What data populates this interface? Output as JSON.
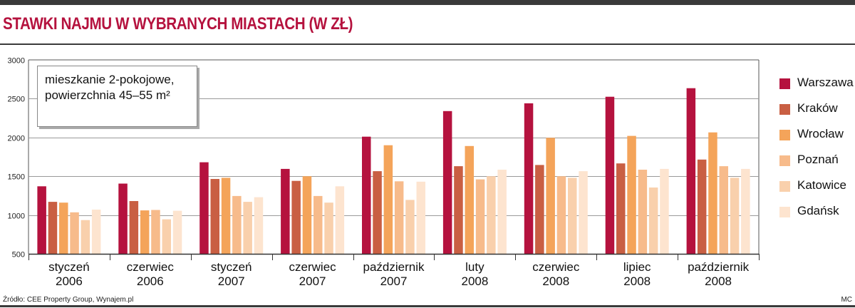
{
  "title": "STAWKI NAJMU W WYBRANYCH MIASTACH (W ZŁ)",
  "note": {
    "line1": "mieszkanie 2-pokojowe,",
    "line2": "powierzchnia 45–55 m²"
  },
  "source": "Źródło: CEE Property Group, Wynajem.pl",
  "credit": "MC",
  "chart_data": {
    "type": "bar",
    "title": "STAWKI NAJMU W WYBRANYCH MIASTACH (W ZŁ)",
    "categories": [
      [
        "styczeń",
        "2006"
      ],
      [
        "czerwiec",
        "2006"
      ],
      [
        "styczeń",
        "2007"
      ],
      [
        "czerwiec",
        "2007"
      ],
      [
        "październik",
        "2007"
      ],
      [
        "luty",
        "2008"
      ],
      [
        "czerwiec",
        "2008"
      ],
      [
        "lipiec",
        "2008"
      ],
      [
        "październik",
        "2008"
      ]
    ],
    "series": [
      {
        "name": "Warszawa",
        "color": "#b5123e",
        "values": [
          1370,
          1405,
          1680,
          1595,
          2010,
          2340,
          2440,
          2525,
          2635
        ]
      },
      {
        "name": "Kraków",
        "color": "#c95f43",
        "values": [
          1170,
          1180,
          1465,
          1440,
          1565,
          1630,
          1645,
          1665,
          1715
        ]
      },
      {
        "name": "Wrocław",
        "color": "#f4a45a",
        "values": [
          1160,
          1060,
          1480,
          1500,
          1900,
          1890,
          1995,
          2020,
          2065
        ]
      },
      {
        "name": "Poznań",
        "color": "#f7bb8b",
        "values": [
          1035,
          1065,
          1245,
          1245,
          1435,
          1460,
          1500,
          1585,
          1630
        ]
      },
      {
        "name": "Katowice",
        "color": "#f9d0ac",
        "values": [
          935,
          945,
          1170,
          1160,
          1195,
          1500,
          1480,
          1355,
          1480
        ]
      },
      {
        "name": "Gdańsk",
        "color": "#fde4cf",
        "values": [
          1070,
          1055,
          1230,
          1370,
          1430,
          1585,
          1565,
          1595,
          1595
        ]
      }
    ],
    "yticks": [
      500,
      1000,
      1500,
      2000,
      2500,
      3000
    ],
    "ylim": [
      500,
      3000
    ],
    "grid": true,
    "legend": "right"
  }
}
